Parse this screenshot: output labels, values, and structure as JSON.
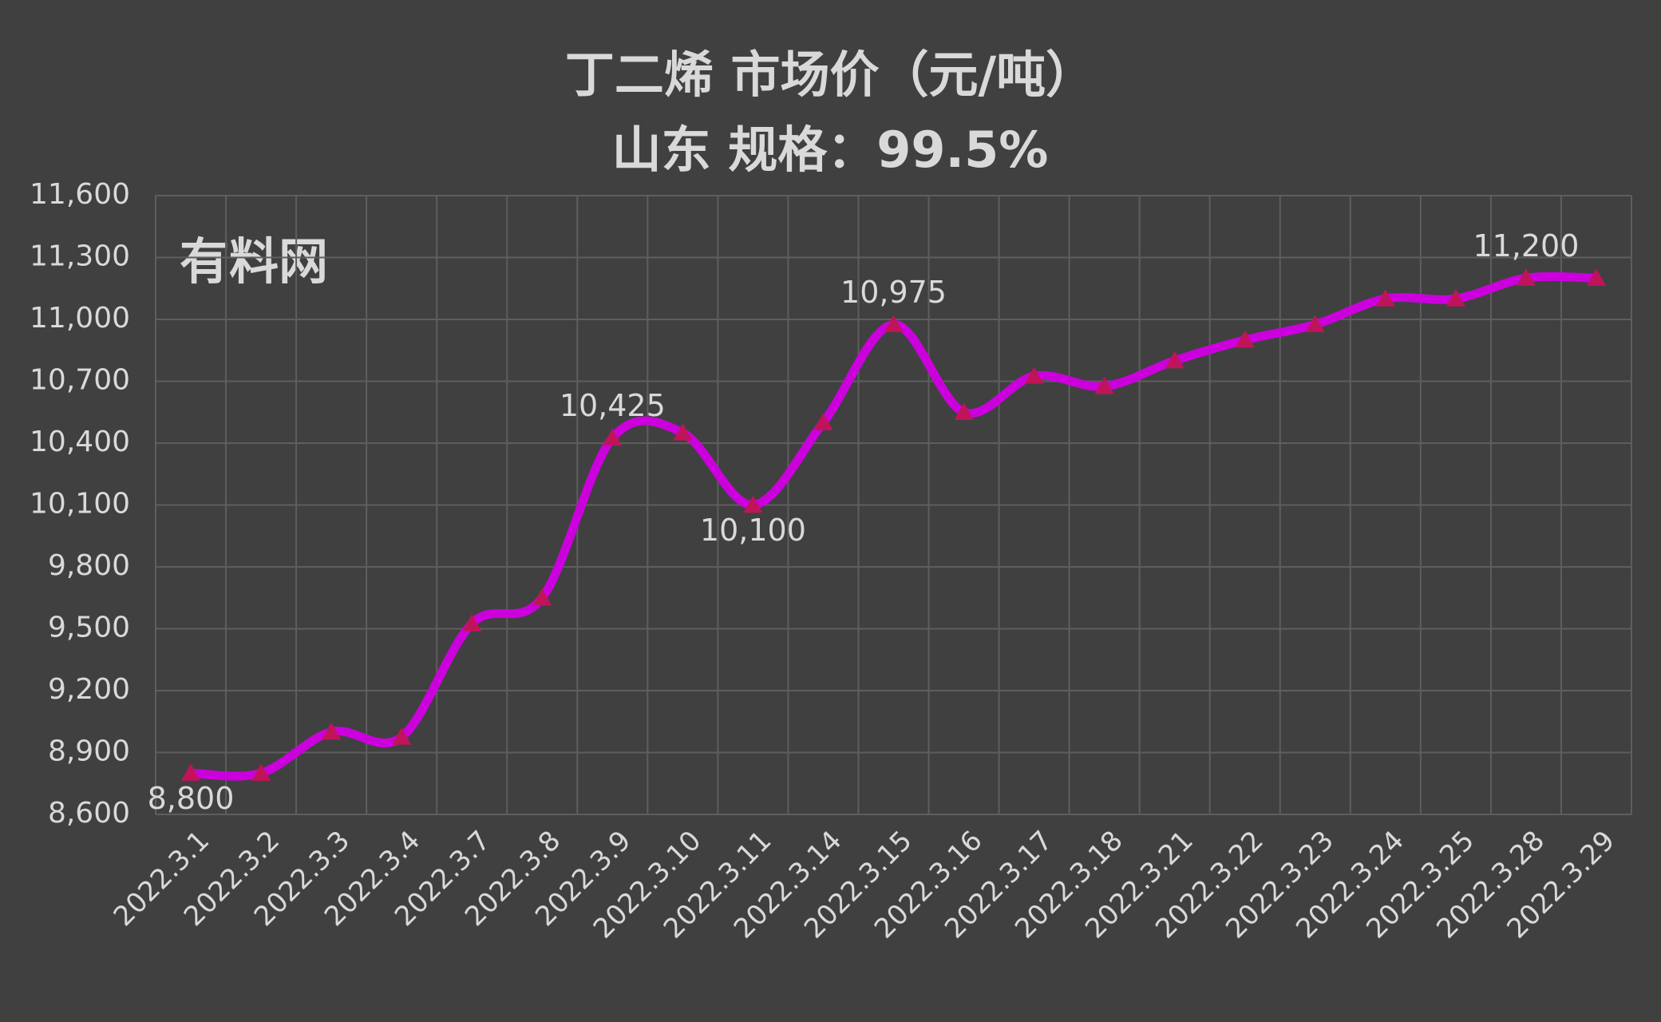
{
  "chart_data": {
    "type": "line",
    "title": "丁二烯  市场价（元/吨）",
    "subtitle": "山东    规格：99.5%",
    "annotation": "有料网",
    "categories": [
      "2022.3.1",
      "2022.3.2",
      "2022.3.3",
      "2022.3.4",
      "2022.3.7",
      "2022.3.8",
      "2022.3.9",
      "2022.3.10",
      "2022.3.11",
      "2022.3.14",
      "2022.3.15",
      "2022.3.16",
      "2022.3.17",
      "2022.3.18",
      "2022.3.21",
      "2022.3.22",
      "2022.3.23",
      "2022.3.24",
      "2022.3.25",
      "2022.3.28",
      "2022.3.29"
    ],
    "series": [
      {
        "name": "丁二烯",
        "color": "#cc00dd",
        "marker_color": "#c0145a",
        "values": [
          8800,
          8800,
          9000,
          8975,
          9525,
          9650,
          10425,
          10450,
          10100,
          10500,
          10975,
          10550,
          10725,
          10675,
          10800,
          10900,
          10975,
          11100,
          11100,
          11200,
          11200
        ],
        "value_labels": [
          "8,800",
          null,
          null,
          null,
          null,
          null,
          "10,425",
          null,
          "10,100",
          null,
          "10,975",
          null,
          null,
          null,
          null,
          null,
          null,
          null,
          null,
          "11,200",
          null
        ]
      }
    ],
    "ylim": [
      8600,
      11600
    ],
    "yticks": [
      {
        "value": 8600,
        "label": "8,600"
      },
      {
        "value": 8900,
        "label": "8,900"
      },
      {
        "value": 9200,
        "label": "9,200"
      },
      {
        "value": 9500,
        "label": "9,500"
      },
      {
        "value": 9800,
        "label": "9,800"
      },
      {
        "value": 10100,
        "label": "10,100"
      },
      {
        "value": 10400,
        "label": "10,400"
      },
      {
        "value": 10700,
        "label": "10,700"
      },
      {
        "value": 11000,
        "label": "11,000"
      },
      {
        "value": 11300,
        "label": "11,300"
      },
      {
        "value": 11600,
        "label": "11,600"
      }
    ],
    "grid": true,
    "smooth": true
  }
}
